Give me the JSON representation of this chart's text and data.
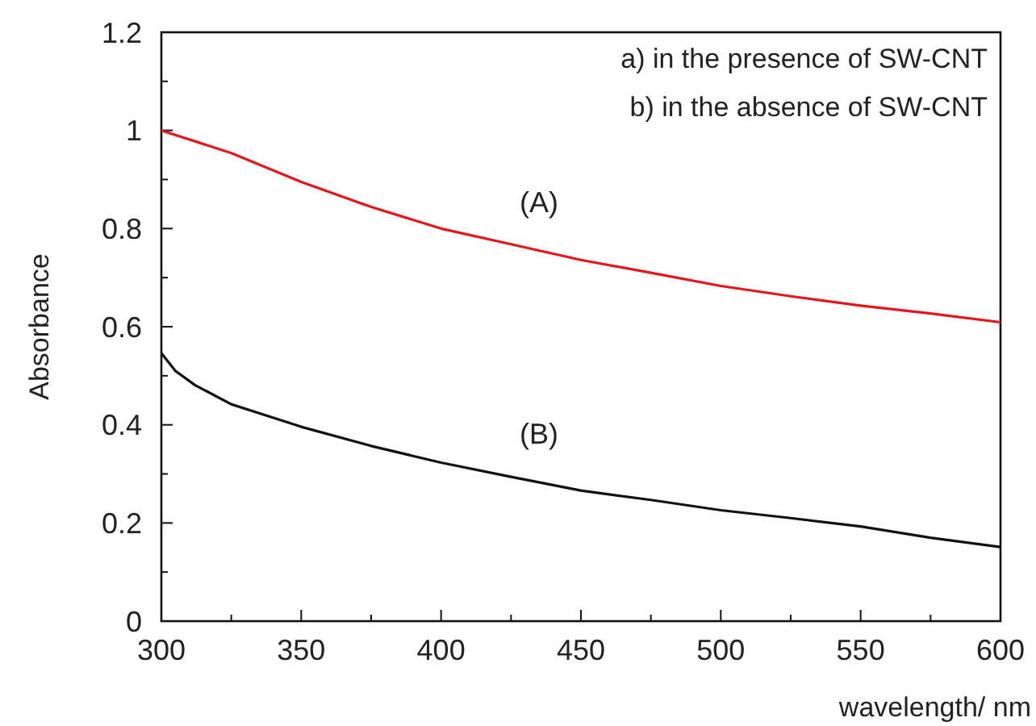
{
  "chart_data": {
    "type": "line",
    "xlabel": "wavelength/ nm",
    "ylabel": "Absorbance",
    "xlim": [
      300,
      600
    ],
    "ylim": [
      0,
      1.2
    ],
    "xticks": [
      300,
      {
        "value": 325,
        "label": null
      },
      350,
      {
        "value": 375,
        "label": null
      },
      400,
      {
        "value": 425,
        "label": null
      },
      450,
      {
        "value": 475,
        "label": null
      },
      500,
      {
        "value": 525,
        "label": null
      },
      550,
      {
        "value": 575,
        "label": null
      },
      600
    ],
    "yticks": [
      0,
      {
        "value": 0.1,
        "label": null
      },
      0.2,
      {
        "value": 0.3,
        "label": null
      },
      0.4,
      {
        "value": 0.5,
        "label": null
      },
      0.6,
      {
        "value": 0.7,
        "label": null
      },
      0.8,
      {
        "value": 0.9,
        "label": null
      },
      1,
      {
        "value": 1.1,
        "label": null
      },
      1.2
    ],
    "grid": false,
    "marker": "none",
    "line_style": "solid",
    "series": [
      {
        "name": "(A)",
        "color": "#e8141c",
        "x": [
          300,
          325,
          350,
          375,
          400,
          425,
          450,
          475,
          500,
          525,
          550,
          575,
          600
        ],
        "values": [
          1.0,
          0.954,
          0.895,
          0.844,
          0.8,
          0.768,
          0.736,
          0.71,
          0.683,
          0.662,
          0.643,
          0.627,
          0.609
        ]
      },
      {
        "name": "(B)",
        "color": "#111111",
        "x": [
          300,
          305,
          312,
          325,
          350,
          375,
          400,
          425,
          450,
          475,
          500,
          525,
          550,
          575,
          600
        ],
        "values": [
          0.546,
          0.51,
          0.481,
          0.442,
          0.396,
          0.357,
          0.323,
          0.294,
          0.266,
          0.247,
          0.226,
          0.21,
          0.193,
          0.17,
          0.151
        ]
      }
    ],
    "annotations": [
      "a) in the presence of SW-CNT",
      "b) in the absence of SW-CNT"
    ]
  }
}
